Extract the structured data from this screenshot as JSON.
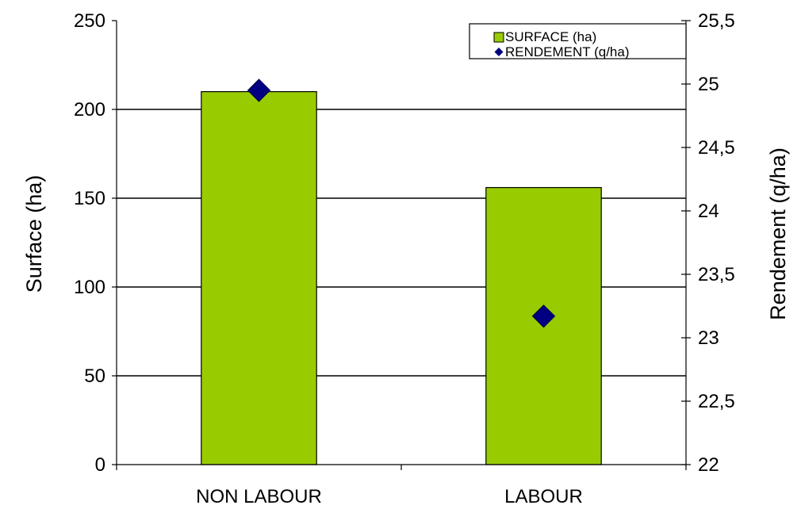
{
  "chart_data": {
    "type": "bar",
    "categories": [
      "NON LABOUR",
      "LABOUR"
    ],
    "series": [
      {
        "name": "SURFACE (ha)",
        "type": "bar",
        "axis": "left",
        "values": [
          210,
          156
        ],
        "color": "#99cc00"
      },
      {
        "name": "RENDEMENT (q/ha)",
        "type": "scatter",
        "axis": "right",
        "marker": "diamond",
        "values": [
          24.95,
          23.17
        ],
        "color": "#000080"
      }
    ],
    "ylabel": "Surface (ha)",
    "y2label": "Rendement (q/ha)",
    "ylim": [
      0,
      250
    ],
    "y2lim": [
      22,
      25.5
    ],
    "yticks": [
      "0",
      "50",
      "100",
      "150",
      "200",
      "250"
    ],
    "y2ticks": [
      "22",
      "22,5",
      "23",
      "23,5",
      "24",
      "24,5",
      "25",
      "25,5"
    ],
    "grid": true,
    "legend_position": "top-right"
  }
}
